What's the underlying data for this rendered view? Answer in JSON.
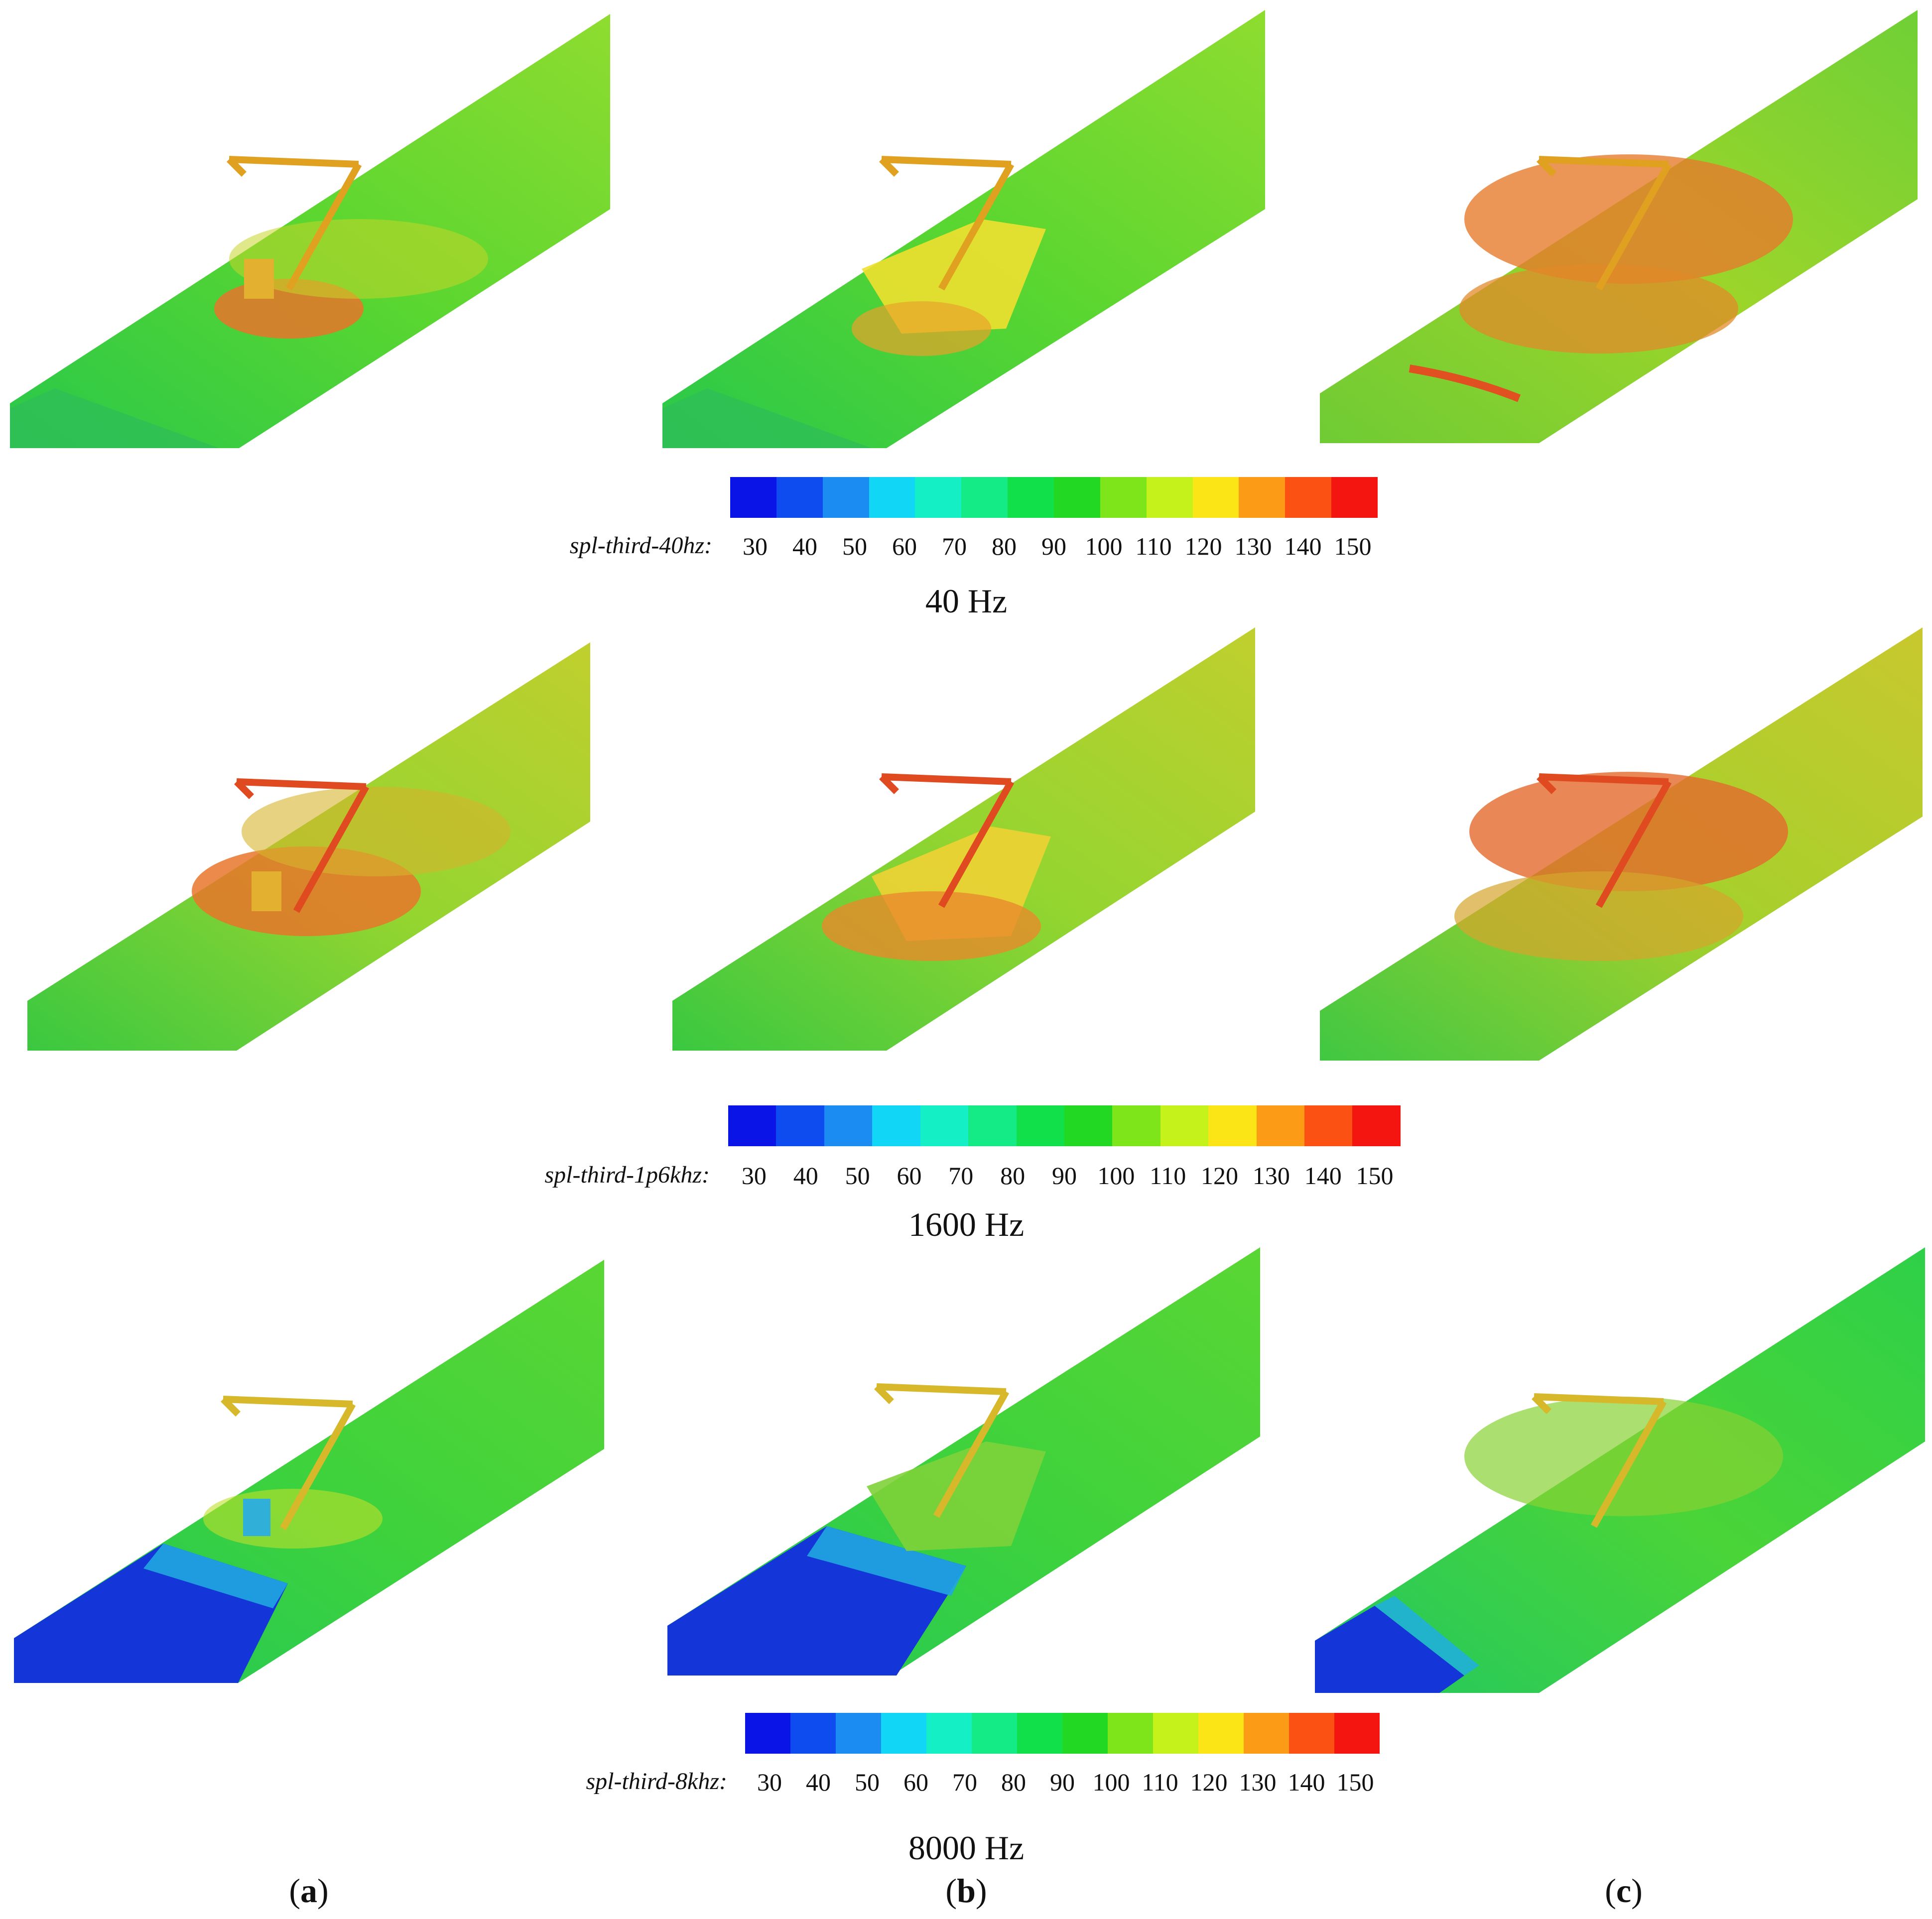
{
  "colormap": [
    "#0a14e6",
    "#0f4cf0",
    "#1a8cf2",
    "#12d6f5",
    "#15efc6",
    "#14eb86",
    "#12e04a",
    "#22d822",
    "#7ee51b",
    "#c4f21a",
    "#fbe517",
    "#fb9b16",
    "#fb5214",
    "#f41410"
  ],
  "ticks": [
    "30",
    "40",
    "50",
    "60",
    "70",
    "80",
    "90",
    "100",
    "110",
    "120",
    "130",
    "140",
    "150"
  ],
  "rows": [
    {
      "variable": "spl-third-40hz:",
      "frequency": "40 Hz"
    },
    {
      "variable": "spl-third-1p6khz:",
      "frequency": "1600 Hz"
    },
    {
      "variable": "spl-third-8khz:",
      "frequency": "8000 Hz"
    }
  ],
  "subfigures": [
    {
      "open": "(",
      "letter": "a",
      "close": ")"
    },
    {
      "open": "(",
      "letter": "b",
      "close": ")"
    },
    {
      "open": "(",
      "letter": "c",
      "close": ")"
    }
  ]
}
